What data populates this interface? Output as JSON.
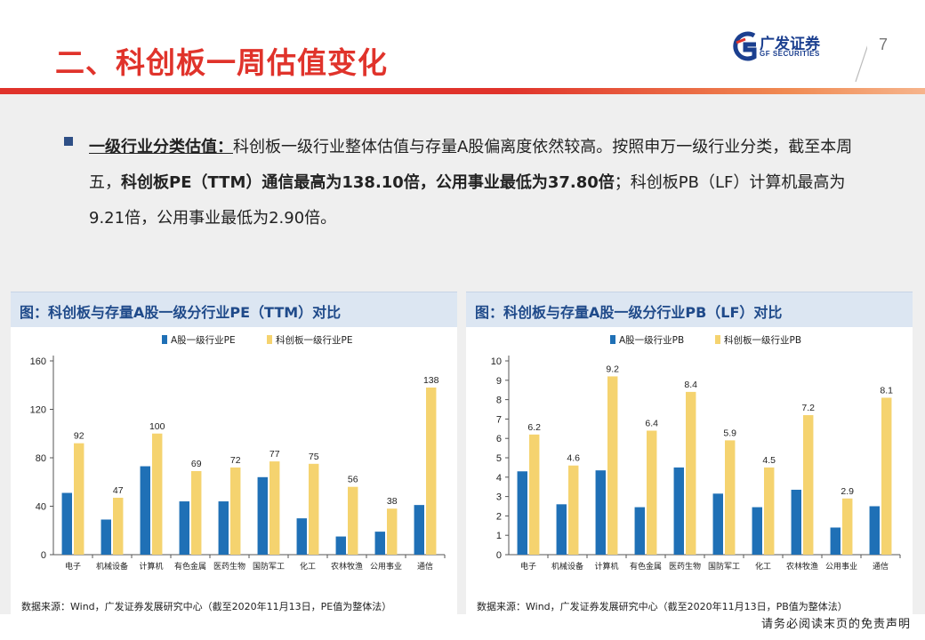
{
  "header": {
    "title": "二、科创板一周估值变化",
    "logo_cn": "广发证券",
    "logo_en": "GF SECURITIES",
    "page_number": "7"
  },
  "bullet": {
    "heading": "一级行业分类估值：",
    "text1": "科创板一级行业整体估值与存量A股偏离度依然较高。按照申万一级行业分类，截至本周五，",
    "bold1": "科创板PE（TTM）通信最高为138.10倍，公用事业最低为37.80倍",
    "text2": "；科创板PB（LF）计算机最高为9.21倍，公用事业最低为2.90倍。"
  },
  "colors": {
    "series_a": "#1f70b6",
    "series_b": "#f5d36f",
    "brand_red": "#e0332b"
  },
  "chart_data": [
    {
      "type": "bar",
      "title": "图：科创板与存量A股一级分行业PE（TTM）对比",
      "categories": [
        "电子",
        "机械设备",
        "计算机",
        "有色金属",
        "医药生物",
        "国防军工",
        "化工",
        "农林牧渔",
        "公用事业",
        "通信"
      ],
      "series": [
        {
          "name": "A股一级行业PE",
          "values": [
            51,
            29,
            73,
            44,
            44,
            64,
            30,
            15,
            19,
            41
          ]
        },
        {
          "name": "科创板一级行业PE",
          "values": [
            92,
            47,
            100,
            69,
            72,
            77,
            75,
            56,
            38,
            138
          ],
          "labels": [
            "92",
            "47",
            "100",
            "69",
            "72",
            "77",
            "75",
            "56",
            "38",
            "138"
          ]
        }
      ],
      "yticks": [
        0,
        40,
        80,
        120,
        160
      ],
      "ylim": [
        0,
        160
      ],
      "legend": "top",
      "grid": false,
      "source": "数据来源：Wind，广发证券发展研究中心（截至2020年11月13日，PE值为整体法）"
    },
    {
      "type": "bar",
      "title": "图：科创板与存量A股一级分行业PB（LF）对比",
      "categories": [
        "电子",
        "机械设备",
        "计算机",
        "有色金属",
        "医药生物",
        "国防军工",
        "化工",
        "农林牧渔",
        "公用事业",
        "通信"
      ],
      "series": [
        {
          "name": "A股一级行业PB",
          "values": [
            4.3,
            2.6,
            4.35,
            2.45,
            4.5,
            3.15,
            2.45,
            3.35,
            1.4,
            2.5
          ]
        },
        {
          "name": "科创板一级行业PB",
          "values": [
            6.2,
            4.6,
            9.2,
            6.4,
            8.4,
            5.9,
            4.5,
            7.2,
            2.9,
            8.1
          ],
          "labels": [
            "6.2",
            "4.6",
            "9.2",
            "6.4",
            "8.4",
            "5.9",
            "4.5",
            "7.2",
            "2.9",
            "8.1"
          ]
        }
      ],
      "yticks": [
        0,
        1,
        2,
        3,
        4,
        5,
        6,
        7,
        8,
        9,
        10
      ],
      "ylim": [
        0,
        10
      ],
      "legend": "top",
      "grid": false,
      "source": "数据来源：Wind，广发证券发展研究中心（截至2020年11月13日，PB值为整体法）"
    }
  ],
  "disclaimer": "请务必阅读末页的免责声明"
}
